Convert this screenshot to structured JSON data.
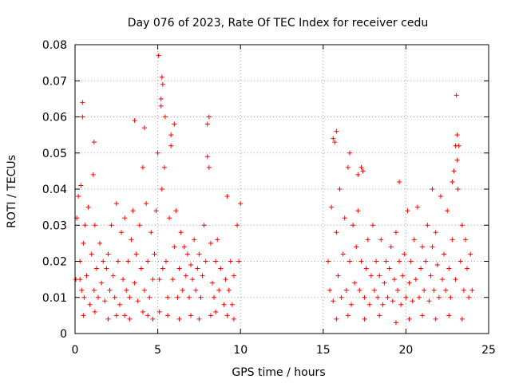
{
  "chart_data": {
    "type": "scatter",
    "title": "Day 076 of 2023, Rate Of TEC Index for receiver cedu",
    "xlabel": "GPS time / hours",
    "ylabel": "ROTI / TECUs",
    "xlim": [
      0,
      25
    ],
    "ylim": [
      0,
      0.08
    ],
    "grid": true,
    "marker": "+",
    "marker_color": "#ff0000",
    "x_ticks": [
      "0",
      "5",
      "10",
      "15",
      "20",
      "25"
    ],
    "y_ticks": [
      "0",
      "0.01",
      "0.02",
      "0.03",
      "0.04",
      "0.05",
      "0.06",
      "0.07",
      "0.08"
    ],
    "series": [
      {
        "x": [
          0.05,
          0.1,
          0.2,
          0.3,
          0.35,
          0.4,
          0.45,
          0.5,
          0.55,
          0.6,
          0.7,
          0.8,
          0.9,
          1.0,
          1.1,
          1.15,
          1.2,
          1.3,
          1.4,
          1.5,
          1.6,
          1.7,
          1.8,
          1.9,
          2.0,
          2.1,
          2.2,
          2.3,
          2.4,
          2.5,
          2.6,
          2.7,
          2.8,
          2.9,
          3.0,
          3.1,
          3.2,
          3.3,
          3.4,
          3.5,
          3.6,
          3.7,
          3.8,
          3.9,
          4.0,
          4.1,
          4.2,
          4.3,
          4.4,
          4.5,
          4.6,
          4.7,
          4.8,
          4.9,
          5.0,
          5.05,
          5.1,
          5.2,
          5.25,
          5.3,
          5.4,
          5.5,
          5.6,
          5.7,
          5.8,
          5.9,
          6.0,
          6.1,
          6.2,
          6.3,
          6.4,
          6.5,
          6.6,
          6.7,
          6.8,
          6.9,
          7.0,
          7.1,
          7.2,
          7.3,
          7.4,
          7.5,
          7.6,
          7.7,
          7.8,
          7.9,
          8.0,
          8.1,
          8.2,
          8.3,
          8.4,
          8.5,
          8.6,
          8.7,
          8.8,
          9.0,
          9.1,
          9.2,
          9.3,
          9.4,
          9.5,
          9.6,
          9.8,
          9.9,
          10.0,
          0.3,
          0.45,
          1.15,
          3.6,
          4.2,
          5.2,
          5.25,
          5.3,
          5.45,
          5.8,
          6.0,
          8.0,
          8.1,
          0.5,
          1.2,
          2.0,
          2.5,
          3.0,
          3.3,
          4.1,
          4.4,
          4.7,
          5.1,
          5.6,
          6.3,
          7.0,
          7.5,
          8.2,
          8.5,
          9.2,
          9.6
        ],
        "y": [
          0.015,
          0.032,
          0.038,
          0.02,
          0.041,
          0.012,
          0.064,
          0.025,
          0.01,
          0.03,
          0.016,
          0.035,
          0.008,
          0.022,
          0.044,
          0.012,
          0.03,
          0.018,
          0.01,
          0.025,
          0.014,
          0.02,
          0.009,
          0.018,
          0.022,
          0.012,
          0.03,
          0.016,
          0.01,
          0.036,
          0.02,
          0.008,
          0.028,
          0.015,
          0.032,
          0.012,
          0.02,
          0.01,
          0.026,
          0.034,
          0.014,
          0.022,
          0.009,
          0.03,
          0.018,
          0.046,
          0.012,
          0.036,
          0.02,
          0.01,
          0.028,
          0.015,
          0.022,
          0.034,
          0.05,
          0.077,
          0.015,
          0.065,
          0.04,
          0.018,
          0.046,
          0.02,
          0.01,
          0.032,
          0.052,
          0.015,
          0.024,
          0.034,
          0.01,
          0.018,
          0.028,
          0.012,
          0.024,
          0.016,
          0.022,
          0.01,
          0.019,
          0.015,
          0.026,
          0.012,
          0.018,
          0.022,
          0.01,
          0.016,
          0.03,
          0.02,
          0.058,
          0.046,
          0.025,
          0.014,
          0.01,
          0.02,
          0.026,
          0.012,
          0.018,
          0.008,
          0.015,
          0.038,
          0.012,
          0.02,
          0.008,
          0.016,
          0.03,
          0.02,
          0.036,
          0.015,
          0.06,
          0.053,
          0.059,
          0.057,
          0.063,
          0.071,
          0.069,
          0.06,
          0.055,
          0.058,
          0.049,
          0.06,
          0.005,
          0.006,
          0.004,
          0.005,
          0.005,
          0.004,
          0.006,
          0.005,
          0.004,
          0.006,
          0.005,
          0.004,
          0.005,
          0.004,
          0.005,
          0.006,
          0.005,
          0.004
        ]
      },
      {
        "x": [
          15.3,
          15.4,
          15.5,
          15.6,
          15.7,
          15.8,
          15.9,
          16.0,
          16.1,
          16.2,
          16.3,
          16.4,
          16.5,
          16.6,
          16.7,
          16.8,
          16.9,
          17.0,
          17.1,
          17.2,
          17.3,
          17.4,
          17.5,
          17.6,
          17.7,
          17.8,
          17.9,
          18.0,
          18.1,
          18.2,
          18.3,
          18.4,
          18.5,
          18.6,
          18.7,
          18.8,
          18.9,
          19.0,
          19.1,
          19.2,
          19.3,
          19.4,
          19.5,
          19.6,
          19.7,
          19.8,
          19.9,
          20.0,
          20.1,
          20.2,
          20.3,
          20.4,
          20.5,
          20.6,
          20.7,
          20.8,
          20.9,
          21.0,
          21.1,
          21.2,
          21.3,
          21.4,
          21.5,
          21.6,
          21.7,
          21.8,
          21.9,
          22.0,
          22.1,
          22.2,
          22.3,
          22.4,
          22.5,
          22.6,
          22.7,
          22.8,
          22.9,
          23.0,
          23.05,
          23.1,
          23.15,
          23.2,
          23.3,
          23.4,
          23.5,
          23.6,
          23.7,
          23.8,
          23.9,
          24.0,
          15.6,
          15.8,
          16.6,
          17.1,
          17.3,
          19.6,
          21.6,
          22.8,
          23.0,
          23.1,
          15.8,
          16.5,
          17.5,
          18.4,
          19.4,
          20.2,
          21.0,
          21.8,
          22.6,
          23.4
        ],
        "y": [
          0.02,
          0.012,
          0.035,
          0.009,
          0.053,
          0.028,
          0.016,
          0.04,
          0.01,
          0.022,
          0.032,
          0.012,
          0.046,
          0.02,
          0.008,
          0.03,
          0.014,
          0.024,
          0.034,
          0.012,
          0.02,
          0.045,
          0.01,
          0.018,
          0.026,
          0.008,
          0.016,
          0.03,
          0.012,
          0.02,
          0.01,
          0.016,
          0.026,
          0.008,
          0.014,
          0.02,
          0.01,
          0.018,
          0.024,
          0.009,
          0.015,
          0.028,
          0.012,
          0.02,
          0.008,
          0.016,
          0.022,
          0.01,
          0.034,
          0.014,
          0.02,
          0.009,
          0.026,
          0.015,
          0.035,
          0.01,
          0.018,
          0.024,
          0.012,
          0.02,
          0.03,
          0.009,
          0.016,
          0.024,
          0.012,
          0.028,
          0.019,
          0.01,
          0.038,
          0.015,
          0.022,
          0.012,
          0.034,
          0.018,
          0.01,
          0.026,
          0.045,
          0.015,
          0.066,
          0.055,
          0.04,
          0.052,
          0.02,
          0.03,
          0.012,
          0.026,
          0.018,
          0.01,
          0.022,
          0.012,
          0.054,
          0.056,
          0.05,
          0.044,
          0.046,
          0.042,
          0.04,
          0.042,
          0.052,
          0.048,
          0.004,
          0.005,
          0.004,
          0.005,
          0.003,
          0.004,
          0.005,
          0.004,
          0.005,
          0.004
        ]
      }
    ]
  }
}
